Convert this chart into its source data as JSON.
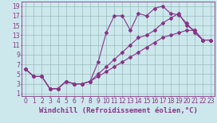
{
  "xlabel": "Windchill (Refroidissement éolien,°C)",
  "xlim": [
    -0.5,
    23.5
  ],
  "ylim": [
    0.5,
    20
  ],
  "xticks": [
    0,
    1,
    2,
    3,
    4,
    5,
    6,
    7,
    8,
    9,
    10,
    11,
    12,
    13,
    14,
    15,
    16,
    17,
    18,
    19,
    20,
    21,
    22,
    23
  ],
  "yticks": [
    1,
    3,
    5,
    7,
    9,
    11,
    13,
    15,
    17,
    19
  ],
  "bg_color": "#cce8ec",
  "grid_color": "#99bbbb",
  "line_color": "#883388",
  "line1_x": [
    0,
    1,
    2,
    3,
    4,
    5,
    6,
    7,
    8,
    9,
    10,
    11,
    12,
    13,
    14,
    15,
    16,
    17,
    18,
    19,
    20,
    21,
    22,
    23
  ],
  "line1_y": [
    6,
    4.5,
    4.5,
    2,
    2,
    3.5,
    3,
    3,
    3.5,
    7.5,
    13.5,
    17,
    17,
    14,
    17.5,
    17,
    18.5,
    19,
    17.5,
    17.2,
    15.5,
    13.5,
    12,
    12
  ],
  "line2_x": [
    0,
    1,
    2,
    3,
    4,
    5,
    6,
    7,
    8,
    9,
    10,
    11,
    12,
    13,
    14,
    15,
    16,
    17,
    18,
    19,
    20,
    21,
    22,
    23
  ],
  "line2_y": [
    6,
    4.5,
    4.5,
    2,
    2,
    3.5,
    3,
    3,
    3.5,
    5,
    6.5,
    8,
    9.5,
    11,
    12.5,
    13,
    14,
    15.5,
    16.5,
    17.5,
    15,
    14,
    12,
    12
  ],
  "line3_x": [
    0,
    1,
    2,
    3,
    4,
    5,
    6,
    7,
    8,
    9,
    10,
    11,
    12,
    13,
    14,
    15,
    16,
    17,
    18,
    19,
    20,
    21,
    22,
    23
  ],
  "line3_y": [
    6,
    4.5,
    4.5,
    2,
    2,
    3.5,
    3,
    3,
    3.5,
    4.5,
    5.5,
    6.5,
    7.5,
    8.5,
    9.5,
    10.5,
    11.5,
    12.5,
    13,
    13.5,
    14,
    14,
    12,
    12
  ],
  "font_size_xlabel": 6.5,
  "font_size_ticks": 5.5,
  "marker_size": 2.0,
  "line_width": 0.8
}
